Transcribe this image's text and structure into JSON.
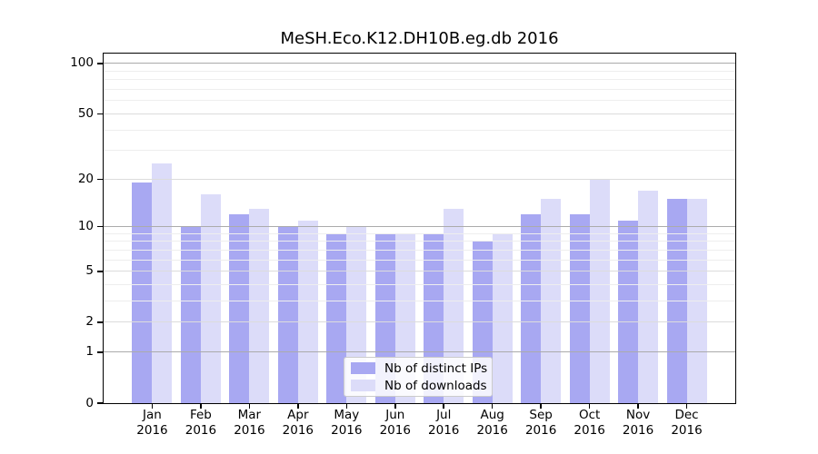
{
  "chart_data": {
    "type": "bar",
    "title": "MeSH.Eco.K12.DH10B.eg.db 2016",
    "year": "2016",
    "categories": [
      "Jan",
      "Feb",
      "Mar",
      "Apr",
      "May",
      "Jun",
      "Jul",
      "Aug",
      "Sep",
      "Oct",
      "Nov",
      "Dec"
    ],
    "series": [
      {
        "name": "Nb of distinct IPs",
        "color": "#a8a8f2",
        "values": [
          19,
          10,
          12,
          10,
          9,
          9,
          9,
          8,
          12,
          12,
          11,
          15
        ]
      },
      {
        "name": "Nb of downloads",
        "color": "#dcdcf9",
        "values": [
          25,
          16,
          13,
          11,
          10,
          9,
          13,
          9,
          15,
          20,
          17,
          15
        ]
      }
    ],
    "y_ticks": [
      0,
      1,
      2,
      5,
      10,
      20,
      50,
      100
    ],
    "y_scale": "log10(1+x)",
    "ylim": [
      0,
      115
    ],
    "grid": "horizontal, major at 1/10/100 darker, minor faint",
    "legend_position": "bottom-center inside plot"
  }
}
